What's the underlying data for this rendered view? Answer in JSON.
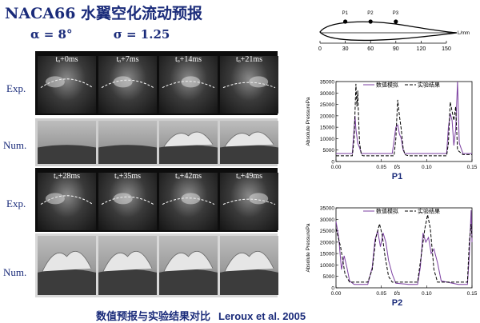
{
  "title": "NACA66 水翼空化流动预报",
  "params": {
    "alpha": "α = 8°",
    "sigma": "σ = 1.25"
  },
  "foil_diagram": {
    "points": [
      "P1",
      "P2",
      "P3"
    ],
    "point_x": [
      30,
      60,
      90
    ],
    "axis_ticks": [
      "0",
      "30",
      "60",
      "90",
      "120",
      "150"
    ],
    "axis_min": 0,
    "axis_max": 150,
    "end_label": "L/mm"
  },
  "row_labels": {
    "exp1": "Exp.",
    "num1": "Num.",
    "exp2": "Exp.",
    "num2": "Num."
  },
  "time_labels_row1": [
    "tₒ+0ms",
    "tₒ+7ms",
    "tₒ+14ms",
    "tₒ+21ms"
  ],
  "time_labels_row2": [
    "tₒ+28ms",
    "tₒ+35ms",
    "tₒ+42ms",
    "tₒ+49ms"
  ],
  "caption": "数值预报与实验结果对比",
  "reference": "Leroux et al. 2005",
  "colors": {
    "text": "#1a2b7a",
    "sim": "#7b3fa0",
    "exp": "#000000"
  },
  "chart_data": [
    {
      "type": "line",
      "title": "P1",
      "xlabel": "t/s",
      "ylabel": "Absolute PressurePa",
      "xlim": [
        0,
        0.15
      ],
      "ylim": [
        0,
        35000
      ],
      "xticks": [
        0.0,
        0.05,
        0.1,
        0.15
      ],
      "xtick_labels": [
        "0.00",
        "0.05",
        "0.10",
        "0.15"
      ],
      "yticks": [
        0,
        5000,
        10000,
        15000,
        20000,
        25000,
        30000,
        35000
      ],
      "ytick_labels": [
        "0",
        "5000",
        "10000",
        "15000",
        "20000",
        "25000",
        "30000",
        "35000"
      ],
      "legend_position": "top",
      "series": [
        {
          "name": "数值模拟",
          "style": "solid",
          "x": [
            0,
            0.018,
            0.019,
            0.021,
            0.022,
            0.024,
            0.026,
            0.028,
            0.03,
            0.034,
            0.05,
            0.062,
            0.064,
            0.066,
            0.068,
            0.07,
            0.072,
            0.074,
            0.076,
            0.08,
            0.09,
            0.11,
            0.122,
            0.124,
            0.126,
            0.128,
            0.13,
            0.132,
            0.134,
            0.136,
            0.14,
            0.15
          ],
          "y": [
            3500,
            3500,
            9000,
            20000,
            14000,
            8000,
            6000,
            3500,
            3500,
            3500,
            3500,
            3500,
            9000,
            15000,
            16000,
            12000,
            10000,
            5000,
            3500,
            3500,
            3500,
            3500,
            3500,
            15000,
            21000,
            18000,
            7000,
            14000,
            36000,
            8000,
            3500,
            3500
          ]
        },
        {
          "name": "实验结果",
          "style": "dashed",
          "x": [
            0,
            0.018,
            0.02,
            0.022,
            0.023,
            0.024,
            0.025,
            0.026,
            0.028,
            0.03,
            0.05,
            0.064,
            0.066,
            0.068,
            0.07,
            0.072,
            0.074,
            0.076,
            0.08,
            0.09,
            0.11,
            0.122,
            0.124,
            0.126,
            0.128,
            0.13,
            0.132,
            0.134,
            0.14,
            0.15
          ],
          "y": [
            2500,
            2500,
            10000,
            34000,
            24000,
            31000,
            18000,
            8000,
            3000,
            2500,
            2500,
            2500,
            10000,
            27000,
            20000,
            14000,
            6000,
            3000,
            2500,
            2500,
            2500,
            2500,
            8000,
            26000,
            22000,
            18000,
            24000,
            5000,
            3000,
            3000
          ]
        }
      ]
    },
    {
      "type": "line",
      "title": "P2",
      "xlabel": "t/s",
      "ylabel": "Absolute PressurePa",
      "xlim": [
        0,
        0.15
      ],
      "ylim": [
        0,
        35000
      ],
      "xticks": [
        0.0,
        0.05,
        0.1,
        0.15
      ],
      "xtick_labels": [
        "0.00",
        "0.05",
        "0.10",
        "0.15"
      ],
      "yticks": [
        0,
        5000,
        10000,
        15000,
        20000,
        25000,
        30000,
        35000
      ],
      "ytick_labels": [
        "0",
        "5000",
        "10000",
        "15000",
        "20000",
        "25000",
        "30000",
        "35000"
      ],
      "legend_position": "top",
      "series": [
        {
          "name": "数值模拟",
          "style": "solid",
          "x": [
            0,
            0.003,
            0.006,
            0.009,
            0.012,
            0.015,
            0.02,
            0.035,
            0.04,
            0.043,
            0.046,
            0.049,
            0.052,
            0.055,
            0.058,
            0.062,
            0.066,
            0.08,
            0.09,
            0.093,
            0.096,
            0.099,
            0.102,
            0.105,
            0.108,
            0.112,
            0.116,
            0.135,
            0.145,
            0.147,
            0.149,
            0.15
          ],
          "y": [
            29000,
            22000,
            8000,
            14000,
            9000,
            3000,
            1500,
            1500,
            9000,
            21000,
            25000,
            18000,
            24000,
            20000,
            12000,
            6000,
            2000,
            1500,
            1500,
            9000,
            24000,
            20000,
            22000,
            15000,
            17000,
            11000,
            3000,
            1500,
            1500,
            14000,
            34000,
            20000
          ]
        },
        {
          "name": "实验结果",
          "style": "dashed",
          "x": [
            0,
            0.005,
            0.01,
            0.015,
            0.02,
            0.035,
            0.04,
            0.044,
            0.048,
            0.051,
            0.054,
            0.058,
            0.062,
            0.08,
            0.09,
            0.094,
            0.098,
            0.101,
            0.104,
            0.108,
            0.112,
            0.135,
            0.145,
            0.147,
            0.149,
            0.15
          ],
          "y": [
            26000,
            18000,
            6000,
            2500,
            2500,
            2500,
            8000,
            22000,
            28000,
            23000,
            14000,
            5000,
            2500,
            2500,
            2500,
            14000,
            26000,
            32000,
            26000,
            8000,
            2500,
            2500,
            2500,
            20000,
            28000,
            22000
          ]
        }
      ]
    }
  ]
}
